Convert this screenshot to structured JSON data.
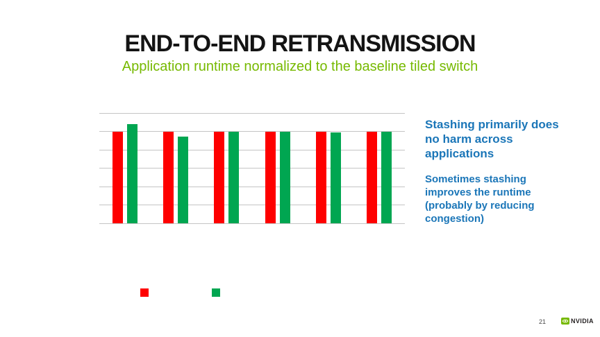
{
  "slide": {
    "title": "END-TO-END RETRANSMISSION",
    "subtitle": "Application runtime normalized to the baseline tiled switch",
    "page_number": "21",
    "logo_text": "NVIDIA"
  },
  "annotations": {
    "primary": "Stashing primarily does no harm across applications",
    "secondary": "Sometimes stashing improves the runtime (probably by reducing congestion)"
  },
  "colors": {
    "title_text": "#141414",
    "subtitle_green": "#76B900",
    "annotation_blue": "#1B76B8",
    "bar_red": "#FE0000",
    "bar_green": "#00A651",
    "gridline_gray": "#C4C4C4",
    "nvidia_logo_green": "#76B900"
  },
  "chart_data": {
    "type": "bar",
    "title": "",
    "xlabel": "",
    "ylabel": "",
    "ylim": [
      0,
      1.2
    ],
    "grid": true,
    "grid_step": 0.2,
    "axis_tick_labels_visible": false,
    "category_labels_visible": false,
    "n_groups": 6,
    "series": [
      {
        "name": "series-red",
        "color": "#FE0000",
        "values": [
          1.0,
          1.0,
          1.0,
          1.0,
          1.0,
          1.0
        ]
      },
      {
        "name": "series-green",
        "color": "#00A651",
        "values": [
          1.08,
          0.94,
          1.0,
          1.0,
          0.99,
          1.0
        ]
      }
    ],
    "legend": {
      "position": "bottom",
      "labels_visible": false,
      "swatches": [
        "#FE0000",
        "#00A651"
      ]
    }
  }
}
